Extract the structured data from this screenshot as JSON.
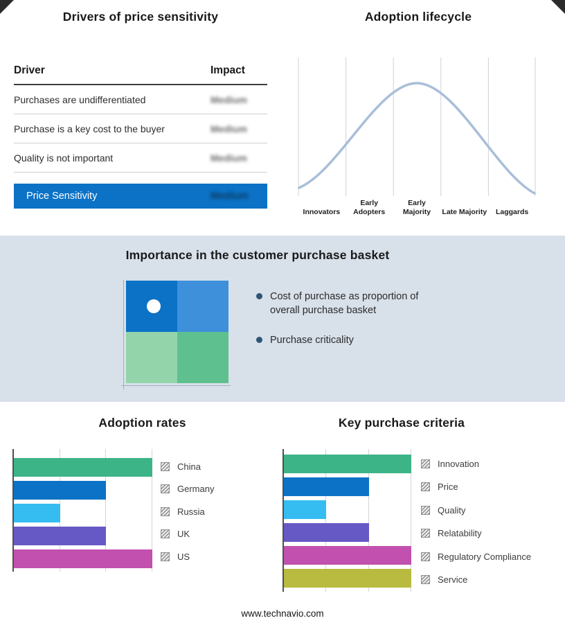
{
  "drivers_panel": {
    "title": "Drivers of price sensitivity",
    "header": {
      "driver": "Driver",
      "impact": "Impact"
    },
    "rows": [
      {
        "driver": "Purchases are undifferentiated",
        "impact": "Medium"
      },
      {
        "driver": "Purchase is a key cost to the buyer",
        "impact": "Medium"
      },
      {
        "driver": "Quality is not important",
        "impact": "Medium"
      }
    ],
    "summary_row": {
      "label": "Price Sensitivity",
      "impact": "Medium",
      "bg": "#0b72c6"
    }
  },
  "purchase_basket": {
    "title": "Importance in the customer purchase basket",
    "band_color": "#d8e0ea",
    "bullet_color": "#2e5574",
    "bullets": [
      "Cost of purchase as proportion of overall purchase basket",
      "Purchase criticality"
    ],
    "quadrant": {
      "top_left": "#0b72c6",
      "top_right": "#3e90da",
      "bottom_left": "#93d4ab",
      "bottom_right": "#5fc08f"
    }
  },
  "footer": {
    "url": "www.technavio.com"
  },
  "chart_data": [
    {
      "type": "line",
      "title": "Adoption lifecycle",
      "x": [
        "Innovators",
        "Early Adopters",
        "Early Majority",
        "Late Majority",
        "Laggards"
      ],
      "values": [
        0.1,
        0.5,
        1.0,
        0.5,
        0.1
      ],
      "description": "Bell-shaped adoption curve peaking at Early Majority",
      "line_color": "#a9bed8",
      "grid": true,
      "legend": "none",
      "xlabel": "",
      "ylabel": ""
    },
    {
      "type": "bar",
      "orientation": "horizontal",
      "title": "Adoption rates",
      "categories": [
        "China",
        "Germany",
        "Russia",
        "UK",
        "US"
      ],
      "values": [
        3,
        2,
        1,
        2,
        3
      ],
      "xlim": [
        0,
        3
      ],
      "unit": "relative gridline units (no numeric axis labels shown)",
      "colors": [
        "#3db487",
        "#0b72c6",
        "#35bdf2",
        "#6659c5",
        "#c150ae"
      ],
      "grid": true,
      "legend": "right"
    },
    {
      "type": "bar",
      "orientation": "horizontal",
      "title": "Key purchase criteria",
      "categories": [
        "Innovation",
        "Price",
        "Quality",
        "Relatability",
        "Regulatory Compliance",
        "Service"
      ],
      "values": [
        3,
        2,
        1,
        2,
        3,
        3
      ],
      "xlim": [
        0,
        3
      ],
      "unit": "relative gridline units (no numeric axis labels shown)",
      "colors": [
        "#3db487",
        "#0b72c6",
        "#35bdf2",
        "#6659c5",
        "#c150ae",
        "#b9ba40"
      ],
      "grid": true,
      "legend": "right"
    }
  ]
}
